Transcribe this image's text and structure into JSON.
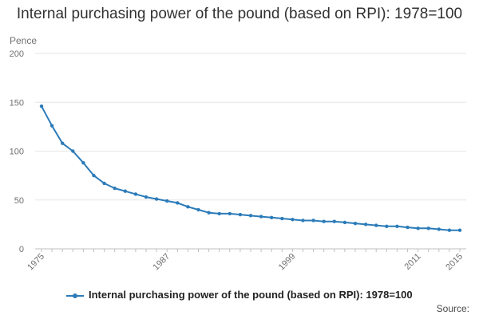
{
  "chart_data": {
    "type": "line",
    "title": "Internal purchasing power of the pound (based on RPI): 1978=100",
    "ylabel": "Pence",
    "xlabel": "",
    "ylim": [
      0,
      200
    ],
    "yticks": [
      0,
      50,
      100,
      150,
      200
    ],
    "xlim": [
      1975,
      2015
    ],
    "xticks": [
      1975,
      1987,
      1999,
      2011,
      2015
    ],
    "grid": true,
    "legend_position": "bottom",
    "source_label": "Source:",
    "series_color": "#2b7bb9",
    "series": [
      {
        "name": "Internal purchasing power of the pound (based on RPI): 1978=100",
        "x": [
          1975,
          1976,
          1977,
          1978,
          1979,
          1980,
          1981,
          1982,
          1983,
          1984,
          1985,
          1986,
          1987,
          1988,
          1989,
          1990,
          1991,
          1992,
          1993,
          1994,
          1995,
          1996,
          1997,
          1998,
          1999,
          2000,
          2001,
          2002,
          2003,
          2004,
          2005,
          2006,
          2007,
          2008,
          2009,
          2010,
          2011,
          2012,
          2013,
          2014,
          2015
        ],
        "values": [
          146,
          126,
          108,
          100,
          88,
          75,
          67,
          62,
          59,
          56,
          53,
          51,
          49,
          47,
          43,
          40,
          37,
          36,
          36,
          35,
          34,
          33,
          32,
          31,
          30,
          29,
          29,
          28,
          28,
          27,
          26,
          25,
          24,
          23,
          23,
          22,
          21,
          21,
          20,
          19,
          19
        ]
      }
    ]
  }
}
